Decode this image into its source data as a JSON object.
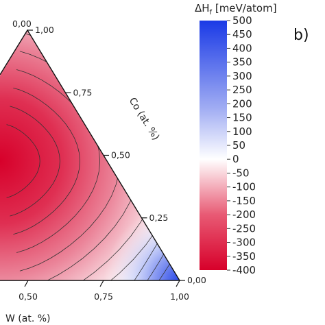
{
  "chart_data": {
    "type": "heatmap",
    "subtype": "ternary-contour",
    "panel_label": "b)",
    "colorbar": {
      "title_symbol": "ΔH",
      "title_subscript": "f",
      "title_unit": " [meV/atom]",
      "ticks": [
        "500",
        "450",
        "400",
        "350",
        "300",
        "250",
        "200",
        "150",
        "100",
        "50",
        "0",
        "-50",
        "-100",
        "-150",
        "-200",
        "-250",
        "-300",
        "-350",
        "-400"
      ],
      "range": [
        -400,
        500
      ],
      "colors": {
        "min": "#d7002a",
        "zero": "#ffffff",
        "max": "#1a3ae6"
      }
    },
    "axes": {
      "co": {
        "title": "Co (at. %)",
        "ticks": [
          "0,00",
          "0,25",
          "0,50",
          "0,75",
          "1,00"
        ]
      },
      "w": {
        "title": "W (at. %)",
        "ticks": [
          "0,50",
          "0,75",
          "1,00"
        ]
      },
      "apex_label": "0,00"
    }
  }
}
